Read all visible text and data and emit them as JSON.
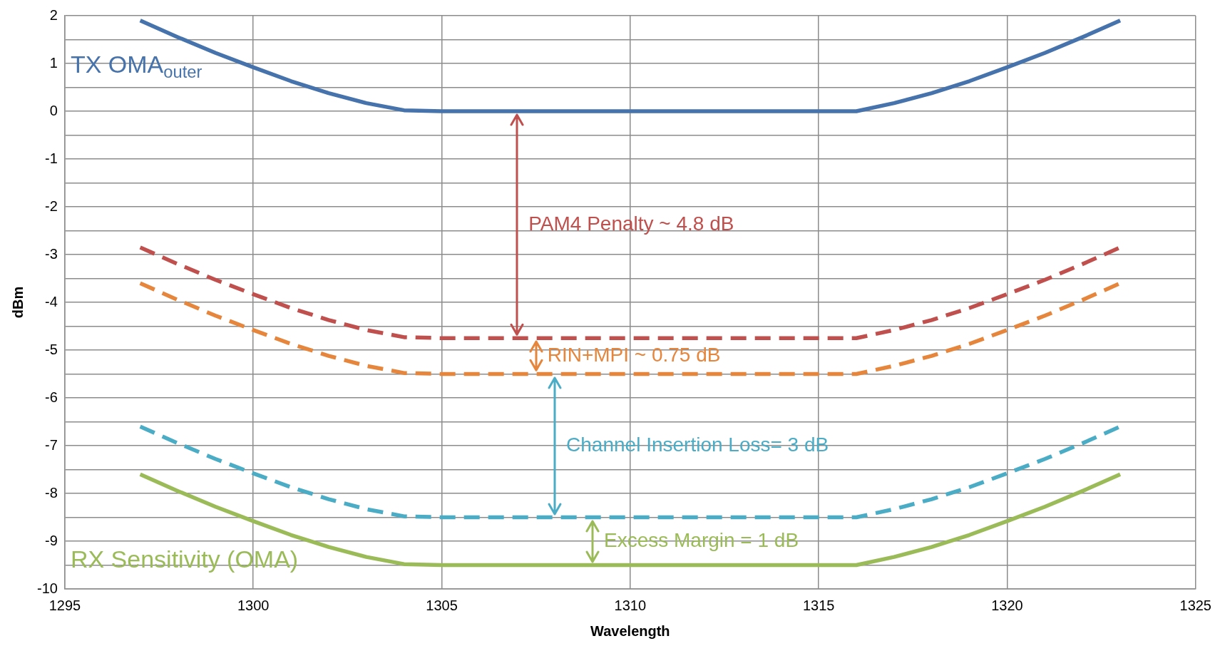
{
  "chart_data": {
    "type": "line",
    "xlabel": "Wavelength",
    "ylabel": "dBm",
    "xlim": [
      1295,
      1325
    ],
    "xticks": [
      1295,
      1300,
      1305,
      1310,
      1315,
      1320,
      1325
    ],
    "ylim": [
      -10,
      2
    ],
    "yticks": [
      -10,
      {
        "value": -9.5,
        "label": null
      },
      -9,
      {
        "value": -8.5,
        "label": null
      },
      -8,
      {
        "value": -7.5,
        "label": null
      },
      -7,
      {
        "value": -6.5,
        "label": null
      },
      -6,
      {
        "value": -5.5,
        "label": null
      },
      -5,
      {
        "value": -4.5,
        "label": null
      },
      -4,
      {
        "value": -3.5,
        "label": null
      },
      -3,
      {
        "value": -2.5,
        "label": null
      },
      -2,
      {
        "value": -1.5,
        "label": null
      },
      -1,
      {
        "value": -0.5,
        "label": null
      },
      0,
      {
        "value": 0.5,
        "label": null
      },
      1,
      {
        "value": 1.5,
        "label": null
      },
      2
    ],
    "grid": true,
    "legend": false,
    "marker": "none",
    "series": [
      {
        "name": "TX OMA$_{outer}$",
        "color": "#4673ac",
        "line_style": "solid",
        "x": [
          1297,
          1298,
          1299,
          1300,
          1301,
          1302,
          1303,
          1304,
          1305,
          1316,
          1317,
          1318,
          1319,
          1320,
          1321,
          1322,
          1323
        ],
        "values": [
          1.9,
          1.55,
          1.22,
          0.92,
          0.63,
          0.38,
          0.17,
          0.02,
          0,
          0,
          0.17,
          0.38,
          0.63,
          0.92,
          1.22,
          1.55,
          1.9
        ]
      },
      {
        "color": "#c0504d",
        "line_style": "dashed",
        "x": [
          1297,
          1298,
          1299,
          1300,
          1301,
          1302,
          1303,
          1304,
          1305,
          1316,
          1317,
          1318,
          1319,
          1320,
          1321,
          1322,
          1323
        ],
        "values": [
          -2.85,
          -3.2,
          -3.53,
          -3.83,
          -4.12,
          -4.37,
          -4.58,
          -4.73,
          -4.75,
          -4.75,
          -4.58,
          -4.37,
          -4.12,
          -3.83,
          -3.53,
          -3.2,
          -2.85
        ]
      },
      {
        "color": "#e6863c",
        "line_style": "dashed",
        "x": [
          1297,
          1298,
          1299,
          1300,
          1301,
          1302,
          1303,
          1304,
          1305,
          1316,
          1317,
          1318,
          1319,
          1320,
          1321,
          1322,
          1323
        ],
        "values": [
          -3.6,
          -3.95,
          -4.28,
          -4.58,
          -4.87,
          -5.12,
          -5.33,
          -5.48,
          -5.5,
          -5.5,
          -5.33,
          -5.12,
          -4.87,
          -4.58,
          -4.28,
          -3.95,
          -3.6
        ]
      },
      {
        "color": "#4bacc6",
        "line_style": "dashed",
        "x": [
          1297,
          1298,
          1299,
          1300,
          1301,
          1302,
          1303,
          1304,
          1305,
          1316,
          1317,
          1318,
          1319,
          1320,
          1321,
          1322,
          1323
        ],
        "values": [
          -6.6,
          -6.95,
          -7.28,
          -7.58,
          -7.87,
          -8.12,
          -8.33,
          -8.48,
          -8.5,
          -8.5,
          -8.33,
          -8.12,
          -7.87,
          -7.58,
          -7.28,
          -6.95,
          -6.6
        ]
      },
      {
        "name": "RX Sensitivity (OMA)",
        "color": "#9bbb59",
        "line_style": "solid",
        "x": [
          1297,
          1298,
          1299,
          1300,
          1301,
          1302,
          1303,
          1304,
          1305,
          1316,
          1317,
          1318,
          1319,
          1320,
          1321,
          1322,
          1323
        ],
        "values": [
          -7.6,
          -7.95,
          -8.28,
          -8.58,
          -8.87,
          -9.12,
          -9.33,
          -9.48,
          -9.5,
          -9.5,
          -9.33,
          -9.12,
          -8.87,
          -8.58,
          -8.28,
          -7.95,
          -7.6
        ]
      }
    ],
    "annotations": [
      "PAM4 Penalty ~ 4.8 dB",
      {
        "text": "RIN+MPI ~ 0.75 dB",
        "x": 1307.5,
        "y": -5.5
      },
      "Channel Insertion Loss= 3 dB",
      {
        "text": "Excess Margin = 1 dB",
        "x": 1309,
        "y": -9.5
      }
    ]
  }
}
